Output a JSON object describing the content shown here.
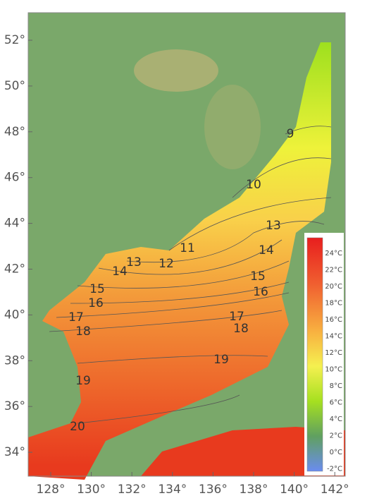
{
  "map": {
    "lat_labels": [
      "52°",
      "50°",
      "48°",
      "46°",
      "44°",
      "42°",
      "40°",
      "38°",
      "36°",
      "34°"
    ],
    "lon_labels": [
      "128°",
      "130°",
      "132°",
      "134°",
      "136°",
      "138°",
      "140°",
      "142°"
    ],
    "contour_labels": [
      "9",
      "10",
      "11",
      "12",
      "13",
      "13",
      "14",
      "14",
      "15",
      "15",
      "16",
      "16",
      "17",
      "17",
      "18",
      "18",
      "19",
      "19",
      "20"
    ],
    "colorbar_labels": [
      "24°C",
      "22°C",
      "20°C",
      "18°C",
      "16°C",
      "14°C",
      "12°C",
      "10°C",
      "8°C",
      "6°C",
      "4°C",
      "2°C",
      "0°C",
      "-2°C"
    ]
  }
}
